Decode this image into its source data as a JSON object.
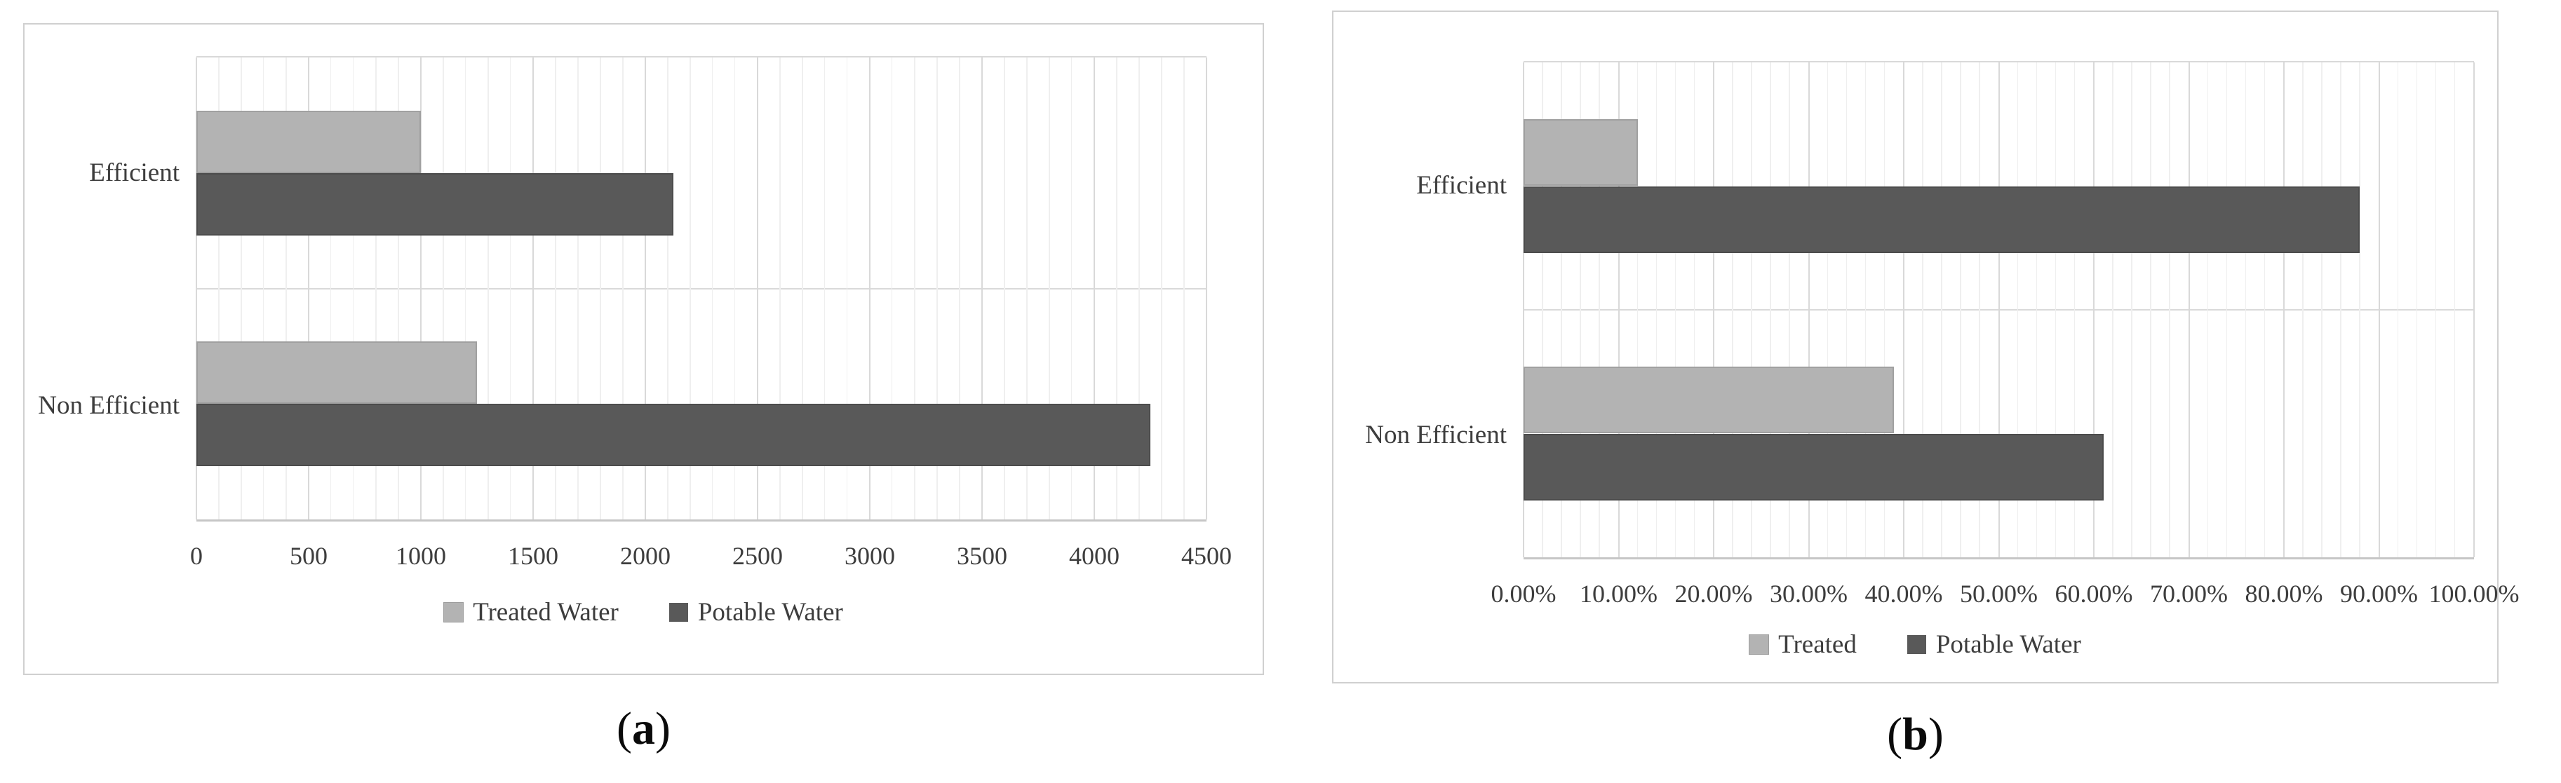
{
  "figure": {
    "background": "#ffffff",
    "panel_border_color": "#d0d0d0",
    "gridline_minor_color": "#efefef",
    "gridline_major_color": "#d9d9d9",
    "text_color": "#3d3d3d"
  },
  "captions": {
    "a_open": "(",
    "a_letter": "a",
    "a_close": ")",
    "b_open": "(",
    "b_letter": "b",
    "b_close": ")"
  },
  "chart_data": [
    {
      "type": "bar",
      "orientation": "horizontal",
      "title": "",
      "categories": [
        "Efficient",
        "Non Efficient"
      ],
      "series": [
        {
          "name": "Treated Water",
          "color": "#b3b3b3",
          "values": [
            1000,
            1250
          ]
        },
        {
          "name": "Potable Water",
          "color": "#595959",
          "values": [
            2125,
            4250
          ]
        }
      ],
      "xlim": [
        0,
        4500
      ],
      "x_tick_step": 500,
      "minor_gridline_step": 100,
      "x_tick_labels": [
        "0",
        "500",
        "1000",
        "1500",
        "2000",
        "2500",
        "3000",
        "3500",
        "4000",
        "4500"
      ],
      "grid": true,
      "legend_position": "bottom",
      "caption": "(a)"
    },
    {
      "type": "bar",
      "orientation": "horizontal",
      "title": "",
      "categories": [
        "Efficient",
        "Non Efficient"
      ],
      "series": [
        {
          "name": "Treated",
          "color": "#b3b3b3",
          "values": [
            12,
            39
          ]
        },
        {
          "name": "Potable Water",
          "color": "#595959",
          "values": [
            88,
            61
          ]
        }
      ],
      "xlim": [
        0,
        100
      ],
      "x_tick_step": 10,
      "minor_gridline_step": 2,
      "x_tick_labels": [
        "0.00%",
        "10.00%",
        "20.00%",
        "30.00%",
        "40.00%",
        "50.00%",
        "60.00%",
        "70.00%",
        "80.00%",
        "90.00%",
        "100.00%"
      ],
      "grid": true,
      "legend_position": "bottom",
      "caption": "(b)"
    }
  ]
}
